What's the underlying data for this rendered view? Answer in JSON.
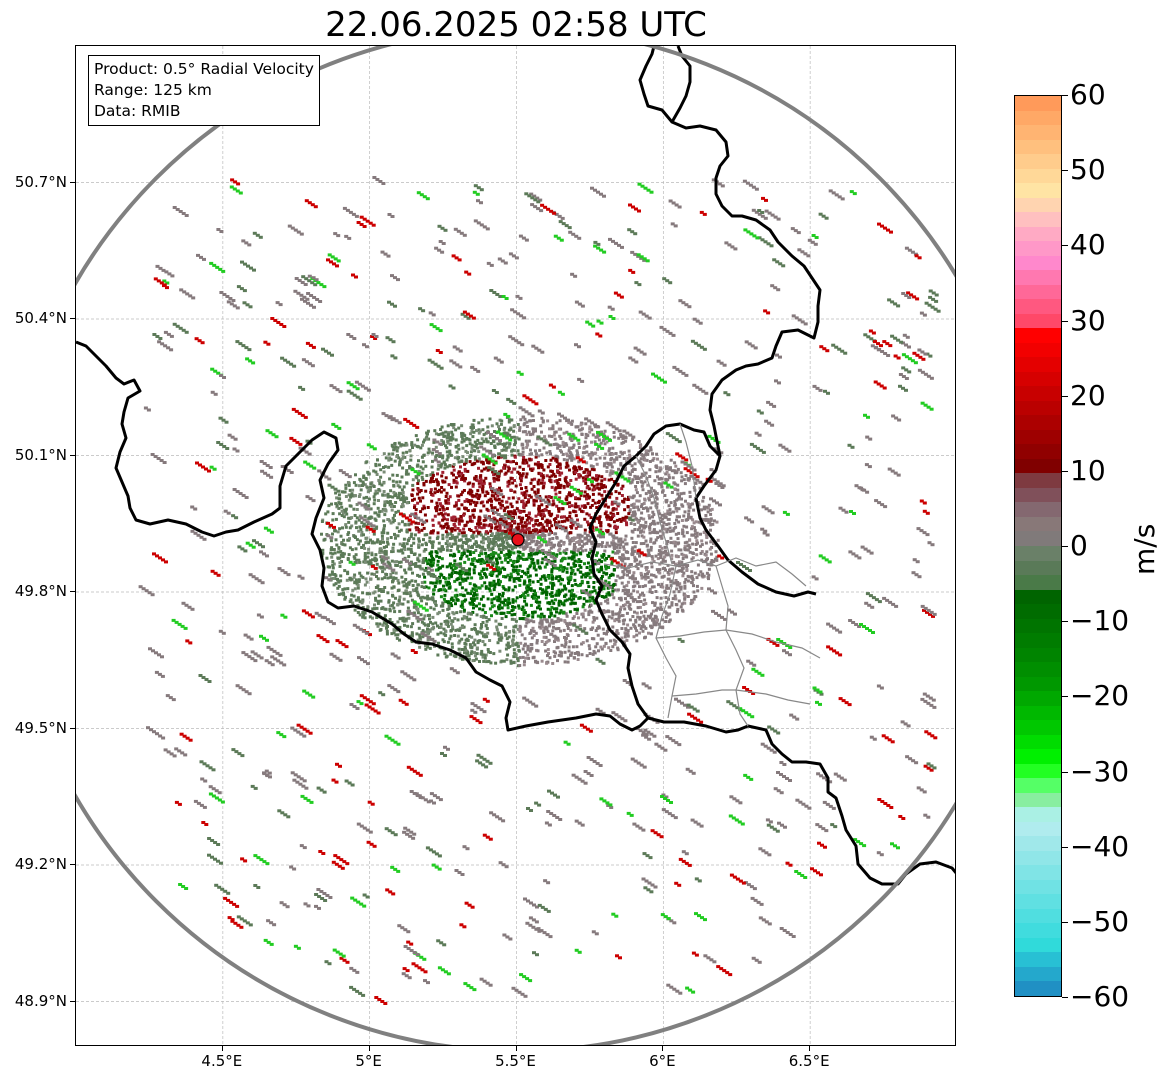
{
  "title": "22.06.2025 02:58 UTC",
  "info_box": {
    "product": "Product: 0.5° Radial Velocity",
    "range": "Range: 125 km",
    "data": "Data: RMIB"
  },
  "map": {
    "lat_labels": [
      "50.7°N",
      "50.4°N",
      "50.1°N",
      "49.8°N",
      "49.5°N",
      "49.2°N",
      "48.9°N"
    ],
    "lon_labels": [
      "4.5°E",
      "5°E",
      "5.5°E",
      "6°E",
      "6.5°E"
    ],
    "lat_values": [
      50.7,
      50.4,
      50.1,
      49.8,
      49.5,
      49.2,
      48.9
    ],
    "lon_values": [
      4.5,
      5.0,
      5.5,
      6.0,
      6.5
    ],
    "extent": {
      "lon_min": 4.0,
      "lon_max": 7.0,
      "lat_min": 48.8,
      "lat_max": 51.0
    },
    "radar_site": {
      "lon": 5.505,
      "lat": 49.915
    },
    "range_ring_km": 125,
    "radar_marker_color": "#e8101a",
    "range_ring_color": "#808080",
    "border_color": "#000000",
    "admin_border_color": "#888888"
  },
  "colorbar": {
    "unit": "m/s",
    "min": -60,
    "max": 60,
    "tick_values": [
      60,
      50,
      40,
      30,
      20,
      10,
      0,
      -10,
      -20,
      -30,
      -40,
      -50,
      -60
    ],
    "tick_labels": [
      "60",
      "50",
      "40",
      "30",
      "20",
      "10",
      "0",
      "−10",
      "−20",
      "−30",
      "−40",
      "−50",
      "−60"
    ],
    "colors_top_to_bottom": [
      "#ff9a5a",
      "#ffa866",
      "#ffb472",
      "#ffc07e",
      "#ffcc8c",
      "#ffd898",
      "#ffe4a4",
      "#ffd4b0",
      "#ffc0c0",
      "#ffaac4",
      "#ff98c8",
      "#ff88cc",
      "#ff78b0",
      "#ff6898",
      "#ff5880",
      "#ff4868",
      "#ff0000",
      "#f20000",
      "#e40000",
      "#d60000",
      "#c80000",
      "#ba0000",
      "#ac0000",
      "#9e0000",
      "#900000",
      "#800000",
      "#7e3a40",
      "#80505a",
      "#846870",
      "#887878",
      "#807a7a",
      "#6a8068",
      "#5a7a58",
      "#4a7a48",
      "#006400",
      "#006c00",
      "#007400",
      "#007c00",
      "#008400",
      "#008e00",
      "#009800",
      "#00a800",
      "#00b800",
      "#00c800",
      "#00dc00",
      "#00f000",
      "#22ff22",
      "#55ff66",
      "#88eea0",
      "#aaf0e4",
      "#b0ecee",
      "#a0e8ea",
      "#90e6e8",
      "#80e4e6",
      "#70e2e4",
      "#60e0e2",
      "#50dee0",
      "#40dcde",
      "#30dada",
      "#28c0d4",
      "#24a8cc",
      "#2090c4"
    ]
  },
  "colors": {
    "positive_velocity": "#800000",
    "negative_velocity": "#006400",
    "near_zero_warm": "#867a7d",
    "near_zero_cool": "#5c7a58"
  }
}
